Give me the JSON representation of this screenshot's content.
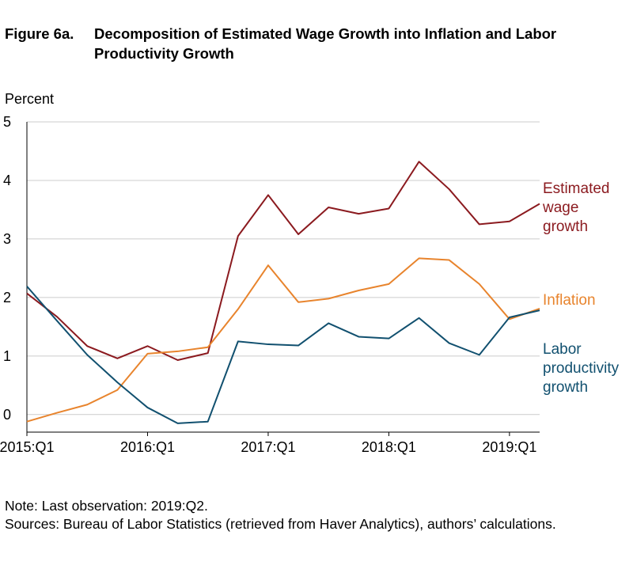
{
  "figure": {
    "number": "Figure 6a.",
    "title": "Decomposition of Estimated Wage Growth into Inflation and Labor Productivity Growth"
  },
  "notes": {
    "note": "Note: Last observation: 2019:Q2.",
    "sources": "Sources: Bureau of Labor Statistics (retrieved from Haver Analytics), authors’ calculations."
  },
  "colors": {
    "wage": "#8b1a1f",
    "inflation": "#e8842d",
    "productivity": "#11506f",
    "grid": "#cccccc",
    "axis": "#000000"
  },
  "chart_data": {
    "type": "line",
    "ylabel": "Percent",
    "ylim": [
      -0.3,
      5
    ],
    "xlim": [
      0,
      17
    ],
    "yticks": [
      0,
      1,
      2,
      3,
      4,
      5
    ],
    "xticks": [
      {
        "label": "2015:Q1",
        "index": 0
      },
      {
        "label": "2016:Q1",
        "index": 4
      },
      {
        "label": "2017:Q1",
        "index": 8
      },
      {
        "label": "2018:Q1",
        "index": 12
      },
      {
        "label": "2019:Q1",
        "index": 16
      }
    ],
    "x": [
      "2015:Q1",
      "2015:Q2",
      "2015:Q3",
      "2015:Q4",
      "2016:Q1",
      "2016:Q2",
      "2016:Q3",
      "2016:Q4",
      "2017:Q1",
      "2017:Q2",
      "2017:Q3",
      "2017:Q4",
      "2018:Q1",
      "2018:Q2",
      "2018:Q3",
      "2018:Q4",
      "2019:Q1",
      "2019:Q2"
    ],
    "grid": true,
    "series": [
      {
        "key": "wage",
        "name_lines": [
          "Estimated",
          "wage",
          "growth"
        ],
        "values": [
          2.07,
          1.67,
          1.17,
          0.96,
          1.17,
          0.93,
          1.05,
          3.05,
          3.75,
          3.08,
          3.54,
          3.43,
          3.52,
          4.32,
          3.85,
          3.25,
          3.3,
          3.6
        ]
      },
      {
        "key": "inflation",
        "name_lines": [
          "Inflation"
        ],
        "values": [
          -0.12,
          0.03,
          0.17,
          0.42,
          1.04,
          1.08,
          1.15,
          1.8,
          2.55,
          1.92,
          1.98,
          2.12,
          2.23,
          2.67,
          2.64,
          2.23,
          1.63,
          1.81
        ]
      },
      {
        "key": "productivity",
        "name_lines": [
          "Labor",
          "productivity",
          "growth"
        ],
        "values": [
          2.19,
          1.6,
          1.02,
          0.55,
          0.12,
          -0.15,
          -0.12,
          1.25,
          1.2,
          1.18,
          1.56,
          1.33,
          1.3,
          1.65,
          1.22,
          1.02,
          1.66,
          1.78
        ]
      }
    ]
  }
}
